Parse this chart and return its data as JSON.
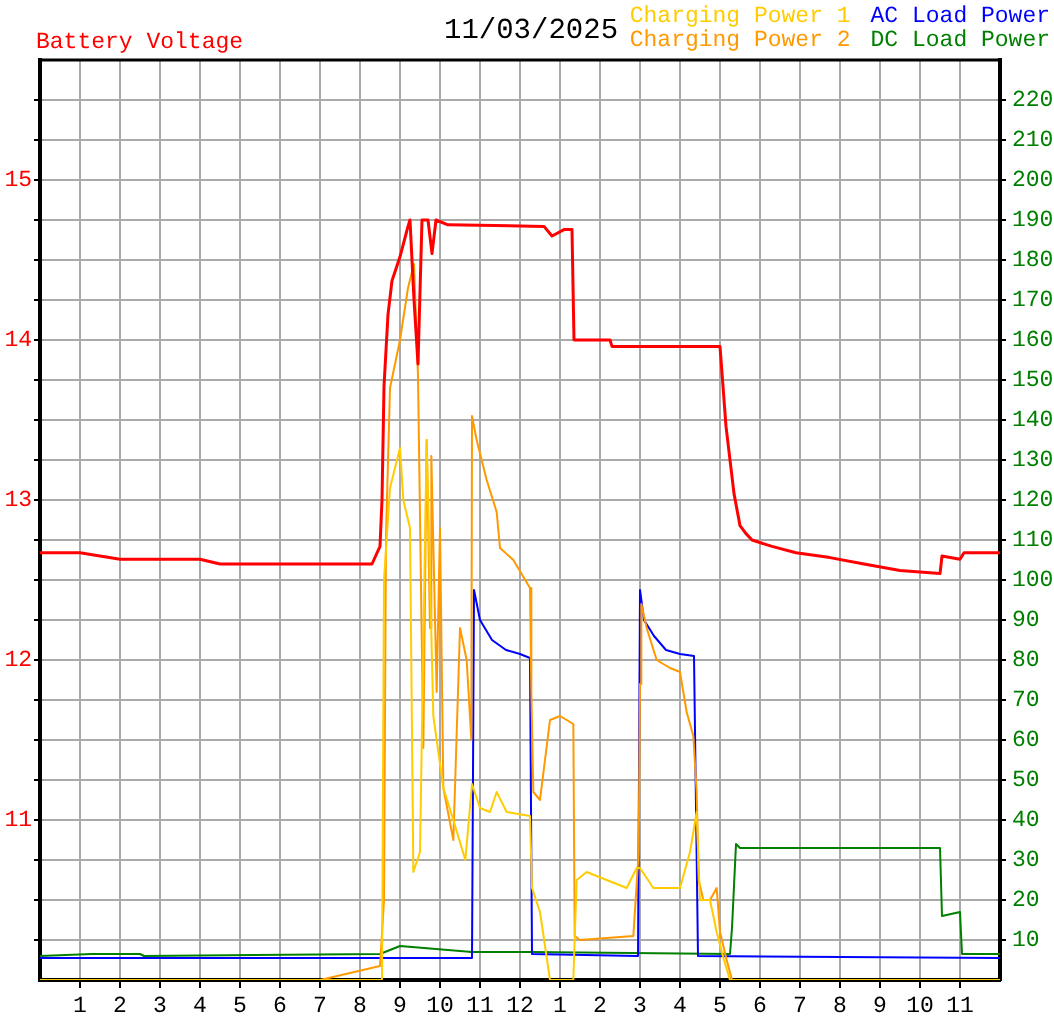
{
  "chart_data": {
    "type": "line",
    "title": "11/03/2025",
    "ylabel": "Battery Voltage",
    "legend": "top right",
    "grid": true,
    "marker": "none",
    "xlim": [
      "2025-11-03T00:00",
      "2025-11-04T00:00"
    ],
    "xticks": [
      {
        "value": "2025-11-03T01:00",
        "label": "1"
      },
      {
        "value": "2025-11-03T02:00",
        "label": "2"
      },
      {
        "value": "2025-11-03T03:00",
        "label": "3"
      },
      {
        "value": "2025-11-03T04:00",
        "label": "4"
      },
      {
        "value": "2025-11-03T05:00",
        "label": "5"
      },
      {
        "value": "2025-11-03T06:00",
        "label": "6"
      },
      {
        "value": "2025-11-03T07:00",
        "label": "7"
      },
      {
        "value": "2025-11-03T08:00",
        "label": "8"
      },
      {
        "value": "2025-11-03T09:00",
        "label": "9"
      },
      {
        "value": "2025-11-03T10:00",
        "label": "10"
      },
      {
        "value": "2025-11-03T11:00",
        "label": "11"
      },
      {
        "value": "2025-11-03T12:00",
        "label": "12"
      },
      {
        "value": "2025-11-03T13:00",
        "label": "1"
      },
      {
        "value": "2025-11-03T14:00",
        "label": "2"
      },
      {
        "value": "2025-11-03T15:00",
        "label": "3"
      },
      {
        "value": "2025-11-03T16:00",
        "label": "4"
      },
      {
        "value": "2025-11-03T17:00",
        "label": "5"
      },
      {
        "value": "2025-11-03T18:00",
        "label": "6"
      },
      {
        "value": "2025-11-03T19:00",
        "label": "7"
      },
      {
        "value": "2025-11-03T20:00",
        "label": "8"
      },
      {
        "value": "2025-11-03T21:00",
        "label": "9"
      },
      {
        "value": "2025-11-03T22:00",
        "label": "10"
      },
      {
        "value": "2025-11-03T23:00",
        "label": "11"
      }
    ],
    "ylim": [
      10,
      15.75
    ],
    "yticks": [
      {
        "value": 10.25,
        "label": null
      },
      {
        "value": 10.5,
        "label": null
      },
      {
        "value": 10.75,
        "label": null
      },
      11,
      {
        "value": 11.25,
        "label": null
      },
      {
        "value": 11.5,
        "label": null
      },
      {
        "value": 11.75,
        "label": null
      },
      12,
      {
        "value": 12.25,
        "label": null
      },
      {
        "value": 12.5,
        "label": null
      },
      {
        "value": 12.75,
        "label": null
      },
      13,
      {
        "value": 13.25,
        "label": null
      },
      {
        "value": 13.5,
        "label": null
      },
      {
        "value": 13.75,
        "label": null
      },
      14,
      {
        "value": 14.25,
        "label": null
      },
      {
        "value": 14.5,
        "label": null
      },
      {
        "value": 14.75,
        "label": null
      },
      15,
      {
        "value": 15.25,
        "label": null
      },
      {
        "value": 15.5,
        "label": null
      }
    ],
    "y2lim": [
      0,
      230
    ],
    "y2ticks": [
      10,
      20,
      30,
      40,
      50,
      60,
      70,
      80,
      90,
      100,
      110,
      120,
      130,
      140,
      150,
      160,
      170,
      180,
      190,
      200,
      210,
      220
    ],
    "series": [
      {
        "color": "#ff0000",
        "x": [
          "2025-11-03T00:00",
          "2025-11-03T01:00",
          "2025-11-03T01:30",
          "2025-11-03T02:00",
          "2025-11-03T04:00",
          "2025-11-03T04:30",
          "2025-11-03T08:18",
          "2025-11-03T08:30",
          "2025-11-03T08:33",
          "2025-11-03T08:36",
          "2025-11-03T08:42",
          "2025-11-03T08:48",
          "2025-11-03T09:00",
          "2025-11-03T09:12",
          "2025-11-03T09:15",
          "2025-11-03T09:21",
          "2025-11-03T09:27",
          "2025-11-03T09:33",
          "2025-11-03T09:42",
          "2025-11-03T09:48",
          "2025-11-03T09:54",
          "2025-11-03T10:12",
          "2025-11-03T12:36",
          "2025-11-03T12:48",
          "2025-11-03T13:06",
          "2025-11-03T13:18",
          "2025-11-03T13:21",
          "2025-11-03T14:15",
          "2025-11-03T14:18",
          "2025-11-03T16:51",
          "2025-11-03T17:00",
          "2025-11-03T17:09",
          "2025-11-03T17:21",
          "2025-11-03T17:30",
          "2025-11-03T17:39",
          "2025-11-03T17:48",
          "2025-11-03T18:18",
          "2025-11-03T18:54",
          "2025-11-03T19:45",
          "2025-11-03T20:36",
          "2025-11-03T21:30",
          "2025-11-03T22:30",
          "2025-11-03T22:33",
          "2025-11-03T23:00",
          "2025-11-03T23:06",
          "2025-11-04T00:00"
        ],
        "values": [
          12.67,
          12.67,
          12.65,
          12.63,
          12.63,
          12.6,
          12.6,
          12.71,
          13.0,
          13.71,
          14.16,
          14.37,
          14.52,
          14.71,
          14.75,
          14.25,
          13.85,
          14.75,
          14.75,
          14.54,
          14.75,
          14.72,
          14.71,
          14.65,
          14.69,
          14.69,
          14.0,
          14.0,
          13.96,
          13.96,
          13.96,
          13.46,
          13.04,
          12.84,
          12.79,
          12.75,
          12.71,
          12.67,
          12.64,
          12.6,
          12.56,
          12.54,
          12.65,
          12.63,
          12.67,
          12.67
        ]
      },
      {
        "name": "Charging Power 1",
        "color": "#ffcc00",
        "axis": "y2",
        "x": [
          "2025-11-03T00:00",
          "2025-11-03T08:33",
          "2025-11-03T08:36",
          "2025-11-03T08:45",
          "2025-11-03T09:00",
          "2025-11-03T09:05",
          "2025-11-03T09:15",
          "2025-11-03T09:20",
          "2025-11-03T09:30",
          "2025-11-03T09:40",
          "2025-11-03T09:50",
          "2025-11-03T10:05",
          "2025-11-03T10:20",
          "2025-11-03T10:38",
          "2025-11-03T10:48",
          "2025-11-03T11:00",
          "2025-11-03T11:15",
          "2025-11-03T11:25",
          "2025-11-03T11:40",
          "2025-11-03T12:15",
          "2025-11-03T12:18",
          "2025-11-03T12:30",
          "2025-11-03T12:45",
          "2025-11-03T13:20",
          "2025-11-03T13:25",
          "2025-11-03T13:40",
          "2025-11-03T14:10",
          "2025-11-03T14:40",
          "2025-11-03T14:55",
          "2025-11-03T15:00",
          "2025-11-03T15:20",
          "2025-11-03T16:00",
          "2025-11-03T16:15",
          "2025-11-03T16:25",
          "2025-11-03T16:30",
          "2025-11-03T16:45",
          "2025-11-03T16:55",
          "2025-11-03T17:06",
          "2025-11-03T17:15",
          "2025-11-04T00:00"
        ],
        "values": [
          0,
          0,
          100,
          123,
          133,
          120,
          113,
          27,
          32,
          135,
          66,
          48,
          40,
          30,
          49,
          43,
          42,
          47,
          42,
          41,
          23,
          17,
          0,
          0,
          25,
          27,
          25,
          23,
          28,
          28,
          23,
          23,
          32,
          42,
          20,
          20,
          12,
          5,
          0,
          0
        ]
      },
      {
        "name": "Charging Power 2",
        "color": "#ff9900",
        "axis": "y2",
        "x": [
          "2025-11-03T00:00",
          "2025-11-03T07:00",
          "2025-11-03T08:30",
          "2025-11-03T08:36",
          "2025-11-03T08:39",
          "2025-11-03T08:45",
          "2025-11-03T09:00",
          "2025-11-03T09:12",
          "2025-11-03T09:21",
          "2025-11-03T09:27",
          "2025-11-03T09:35",
          "2025-11-03T09:40",
          "2025-11-03T09:45",
          "2025-11-03T09:47",
          "2025-11-03T09:55",
          "2025-11-03T10:00",
          "2025-11-03T10:05",
          "2025-11-03T10:20",
          "2025-11-03T10:30",
          "2025-11-03T10:40",
          "2025-11-03T10:47",
          "2025-11-03T10:48",
          "2025-11-03T10:55",
          "2025-11-03T11:10",
          "2025-11-03T11:25",
          "2025-11-03T11:30",
          "2025-11-03T11:50",
          "2025-11-03T12:15",
          "2025-11-03T12:17",
          "2025-11-03T12:20",
          "2025-11-03T12:30",
          "2025-11-03T12:45",
          "2025-11-03T13:00",
          "2025-11-03T13:20",
          "2025-11-03T13:22",
          "2025-11-03T13:30",
          "2025-11-03T14:50",
          "2025-11-03T14:58",
          "2025-11-03T15:00",
          "2025-11-03T15:02",
          "2025-11-03T15:10",
          "2025-11-03T15:25",
          "2025-11-03T15:45",
          "2025-11-03T16:00",
          "2025-11-03T16:05",
          "2025-11-03T16:10",
          "2025-11-03T16:20",
          "2025-11-03T16:25",
          "2025-11-03T16:28",
          "2025-11-03T16:35",
          "2025-11-03T16:45",
          "2025-11-03T16:55",
          "2025-11-03T17:00",
          "2025-11-03T17:10",
          "2025-11-03T17:18",
          "2025-11-04T00:00"
        ],
        "values": [
          0,
          0,
          3.5,
          20,
          111,
          148,
          160,
          173,
          179,
          151,
          58,
          135,
          88,
          131,
          72,
          113,
          48,
          35,
          88,
          80,
          60,
          141,
          135,
          125,
          117,
          108,
          105,
          98,
          72,
          47,
          45,
          65,
          66,
          64,
          11,
          10,
          11,
          32,
          74,
          94,
          88,
          80,
          78,
          77,
          72,
          67,
          61,
          47,
          25,
          20,
          20,
          23,
          12,
          5,
          0,
          0
        ]
      },
      {
        "name": "AC Load Power",
        "color": "#0000ff",
        "axis": "y2",
        "x": [
          "2025-11-03T00:00",
          "2025-11-03T10:48",
          "2025-11-03T10:51",
          "2025-11-03T11:00",
          "2025-11-03T11:18",
          "2025-11-03T11:39",
          "2025-11-03T12:00",
          "2025-11-03T12:15",
          "2025-11-03T12:18",
          "2025-11-03T14:57",
          "2025-11-03T15:00",
          "2025-11-03T15:06",
          "2025-11-03T15:21",
          "2025-11-03T15:39",
          "2025-11-03T16:00",
          "2025-11-03T16:21",
          "2025-11-03T16:27",
          "2025-11-04T00:00"
        ],
        "values": [
          5.5,
          5.5,
          97.5,
          90,
          85,
          82.5,
          81.5,
          80.5,
          6.5,
          6,
          97.5,
          90,
          86,
          82.5,
          81.5,
          81,
          6,
          5.5
        ]
      },
      {
        "name": "DC Load Power",
        "color": "#008000",
        "axis": "y2",
        "x": [
          "2025-11-03T00:00",
          "2025-11-03T01:18",
          "2025-11-03T02:30",
          "2025-11-03T02:36",
          "2025-11-03T08:30",
          "2025-11-03T09:00",
          "2025-11-03T10:48",
          "2025-11-03T12:18",
          "2025-11-03T17:15",
          "2025-11-03T17:18",
          "2025-11-03T17:24",
          "2025-11-03T17:30",
          "2025-11-03T22:30",
          "2025-11-03T22:33",
          "2025-11-03T23:00",
          "2025-11-03T23:03",
          "2025-11-04T00:00"
        ],
        "values": [
          6,
          6.5,
          6.5,
          6,
          6.5,
          8.5,
          7,
          7,
          6.5,
          13,
          34,
          33,
          33,
          16,
          17,
          6.5,
          6.5
        ]
      }
    ]
  }
}
